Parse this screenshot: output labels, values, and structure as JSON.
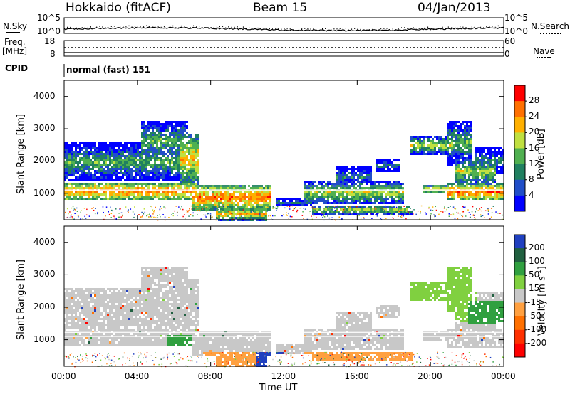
{
  "header": {
    "station": "Hokkaido (fitACF)",
    "beam": "Beam 15",
    "date": "04/Jan/2013"
  },
  "strips": {
    "nsky_label": "N.Sky",
    "nsearch_label": "N.Search",
    "freq_label_1": "Freq.",
    "freq_label_2": "[MHz]",
    "nave_label": "Nave",
    "cpid_label": "CPID",
    "cpid_value": "normal (fast) 151",
    "noise_ticks": [
      "10^5",
      "10^0"
    ],
    "noise_ticks_right": [
      "10^5",
      "10^0"
    ],
    "freq_ticks": [
      "18",
      "8"
    ],
    "nave_ticks": [
      "60",
      "0"
    ]
  },
  "chart_data": [
    {
      "type": "heatmap",
      "name": "power-panel",
      "ylabel": "Slant Range [km]",
      "yticks": [
        "4000",
        "3000",
        "2000",
        "1000"
      ],
      "ylim": [
        180,
        4500
      ],
      "colorbar": {
        "label": "Power [dB]",
        "ticks": [
          "28",
          "24",
          "20",
          "16",
          "12",
          "8",
          "4"
        ],
        "colors": [
          "#ff0000",
          "#ff7000",
          "#ffb000",
          "#c0e040",
          "#50b050",
          "#208060",
          "#204ec8",
          "#0000ff"
        ]
      },
      "echo_regions_hours_km": [
        {
          "x": [
            0,
            7.3
          ],
          "y": [
            800,
            1400
          ],
          "level": "high"
        },
        {
          "x": [
            0,
            6.5
          ],
          "y": [
            1400,
            2600
          ],
          "level": "mid"
        },
        {
          "x": [
            7,
            11.5
          ],
          "y": [
            600,
            1300
          ],
          "level": "high"
        },
        {
          "x": [
            12.8,
            18.5
          ],
          "y": [
            600,
            1400
          ],
          "level": "mid"
        },
        {
          "x": [
            18.8,
            21.2
          ],
          "y": [
            2300,
            2800
          ],
          "level": "mid"
        },
        {
          "x": [
            21,
            24
          ],
          "y": [
            800,
            2000
          ],
          "level": "high"
        }
      ]
    },
    {
      "type": "heatmap",
      "name": "velocity-panel",
      "ylabel": "Slant Range [km]",
      "yticks": [
        "4000",
        "3000",
        "2000",
        "1000"
      ],
      "ylim": [
        180,
        4500
      ],
      "colorbar": {
        "label": "Velocity [m s",
        "label_sup": "-1",
        "label_end": "]",
        "ticks": [
          "200",
          "100",
          "50",
          "15",
          "-15",
          "-50",
          "-100",
          "-200"
        ],
        "colors": [
          "#2040c0",
          "#206040",
          "#30a040",
          "#80d040",
          "#c8c8c8",
          "#ffa040",
          "#ff7000",
          "#ff3000",
          "#ff0000"
        ]
      },
      "xlabel": "Time UT",
      "xticks": [
        "00:00",
        "04:00",
        "08:00",
        "12:00",
        "16:00",
        "20:00",
        "00:00"
      ],
      "xlim_hours": [
        0,
        24
      ]
    }
  ],
  "colors": {
    "white_gap": "#ffffff"
  }
}
